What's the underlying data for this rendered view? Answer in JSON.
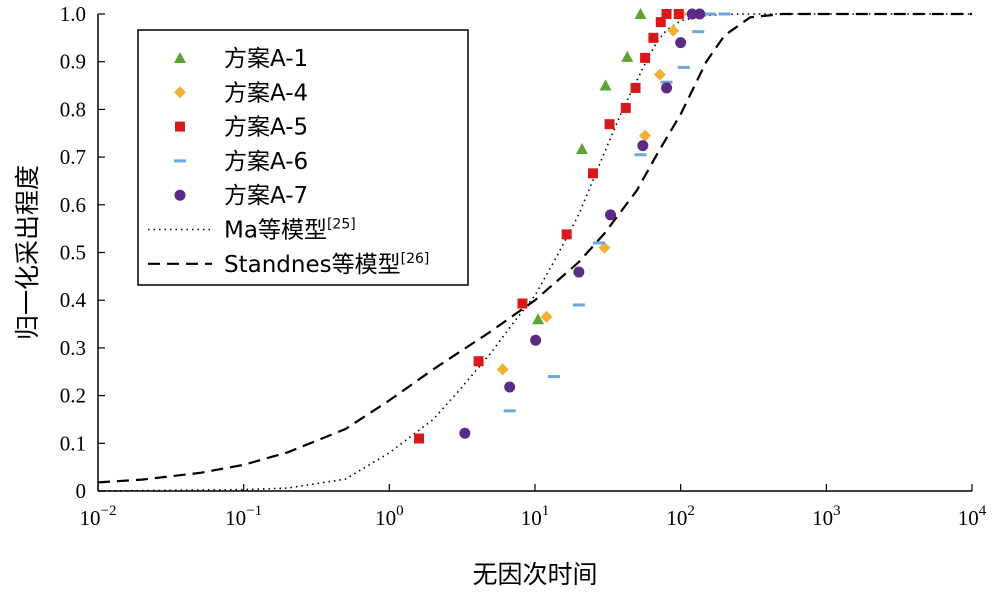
{
  "chart_data": {
    "type": "scatter",
    "xscale": "log",
    "xlim": [
      0.01,
      10000
    ],
    "ylim": [
      0,
      1.0
    ],
    "xlabel": "无因次时间",
    "ylabel": "归一化采出程度",
    "grid": false,
    "legend_position": "top-left",
    "x_tick_labels": [
      {
        "base": "10",
        "exp": "−2"
      },
      {
        "base": "10",
        "exp": "−1"
      },
      {
        "base": "10",
        "exp": "0"
      },
      {
        "base": "10",
        "exp": "1"
      },
      {
        "base": "10",
        "exp": "2"
      },
      {
        "base": "10",
        "exp": "3"
      },
      {
        "base": "10",
        "exp": "4"
      }
    ],
    "x_tick_values": [
      0.01,
      0.1,
      1,
      10,
      100,
      1000,
      10000
    ],
    "y_ticks": [
      "0",
      "0.1",
      "0.2",
      "0.3",
      "0.4",
      "0.5",
      "0.6",
      "0.7",
      "0.8",
      "0.9",
      "1.0"
    ],
    "y_tick_values": [
      0,
      0.1,
      0.2,
      0.3,
      0.4,
      0.5,
      0.6,
      0.7,
      0.8,
      0.9,
      1.0
    ],
    "series": [
      {
        "name": "方案A-1",
        "marker": "triangle",
        "color": "#5aa532",
        "points": [
          [
            10.5,
            0.36
          ],
          [
            21,
            0.717
          ],
          [
            30.5,
            0.85
          ],
          [
            43,
            0.91
          ],
          [
            53,
            1.0
          ]
        ]
      },
      {
        "name": "方案A-4",
        "marker": "diamond",
        "color": "#f2b134",
        "points": [
          [
            6,
            0.255
          ],
          [
            12,
            0.365
          ],
          [
            30,
            0.51
          ],
          [
            57,
            0.745
          ],
          [
            72,
            0.873
          ],
          [
            89,
            0.965
          ],
          [
            101,
            1.0
          ]
        ]
      },
      {
        "name": "方案A-5",
        "marker": "square",
        "color": "#d7191c",
        "points": [
          [
            1.6,
            0.11
          ],
          [
            4.1,
            0.272
          ],
          [
            8.2,
            0.393
          ],
          [
            16.5,
            0.538
          ],
          [
            25,
            0.666
          ],
          [
            32.5,
            0.769
          ],
          [
            42,
            0.803
          ],
          [
            49,
            0.845
          ],
          [
            57,
            0.908
          ],
          [
            65,
            0.95
          ],
          [
            73,
            0.983
          ],
          [
            80,
            1.0
          ],
          [
            97,
            1.0
          ]
        ]
      },
      {
        "name": "方案A-6",
        "marker": "dash",
        "color": "#6ea6e0",
        "points": [
          [
            6.7,
            0.168
          ],
          [
            13.5,
            0.24
          ],
          [
            20,
            0.39
          ],
          [
            27.5,
            0.52
          ],
          [
            53,
            0.705
          ],
          [
            80,
            0.857
          ],
          [
            105,
            0.888
          ],
          [
            132,
            0.963
          ],
          [
            158,
            1.0
          ],
          [
            200,
            1.0
          ]
        ]
      },
      {
        "name": "方案A-7",
        "marker": "circle",
        "color": "#5b2a86",
        "points": [
          [
            3.3,
            0.121
          ],
          [
            6.7,
            0.218
          ],
          [
            10.1,
            0.316
          ],
          [
            20,
            0.459
          ],
          [
            33,
            0.579
          ],
          [
            55,
            0.724
          ],
          [
            80,
            0.845
          ],
          [
            100,
            0.94
          ],
          [
            120,
            1.0
          ],
          [
            135,
            1.0
          ]
        ]
      },
      {
        "name": "Ma等模型",
        "name_sup": "[25]",
        "style": "dotted",
        "color": "#000000",
        "points": [
          [
            0.01,
            0.0
          ],
          [
            0.1,
            0.003
          ],
          [
            0.2,
            0.006
          ],
          [
            0.5,
            0.025
          ],
          [
            1,
            0.08
          ],
          [
            2,
            0.15
          ],
          [
            3,
            0.21
          ],
          [
            5,
            0.29
          ],
          [
            7,
            0.35
          ],
          [
            10,
            0.41
          ],
          [
            14,
            0.49
          ],
          [
            20,
            0.58
          ],
          [
            30,
            0.71
          ],
          [
            40,
            0.8
          ],
          [
            50,
            0.86
          ],
          [
            60,
            0.91
          ],
          [
            70,
            0.945
          ],
          [
            80,
            0.966
          ],
          [
            100,
            0.986
          ],
          [
            150,
            0.997
          ],
          [
            250,
            1.0
          ],
          [
            10000,
            1.0
          ]
        ]
      },
      {
        "name": "Standnes等模型",
        "name_sup": "[26]",
        "style": "dashed",
        "color": "#000000",
        "points": [
          [
            0.01,
            0.018
          ],
          [
            0.02,
            0.024
          ],
          [
            0.05,
            0.038
          ],
          [
            0.1,
            0.055
          ],
          [
            0.2,
            0.081
          ],
          [
            0.5,
            0.13
          ],
          [
            1,
            0.19
          ],
          [
            2,
            0.255
          ],
          [
            5,
            0.335
          ],
          [
            10,
            0.4
          ],
          [
            20,
            0.48
          ],
          [
            30,
            0.54
          ],
          [
            50,
            0.63
          ],
          [
            70,
            0.71
          ],
          [
            100,
            0.79
          ],
          [
            150,
            0.9
          ],
          [
            200,
            0.955
          ],
          [
            300,
            0.993
          ],
          [
            500,
            1.0
          ],
          [
            10000,
            1.0
          ]
        ]
      }
    ]
  }
}
